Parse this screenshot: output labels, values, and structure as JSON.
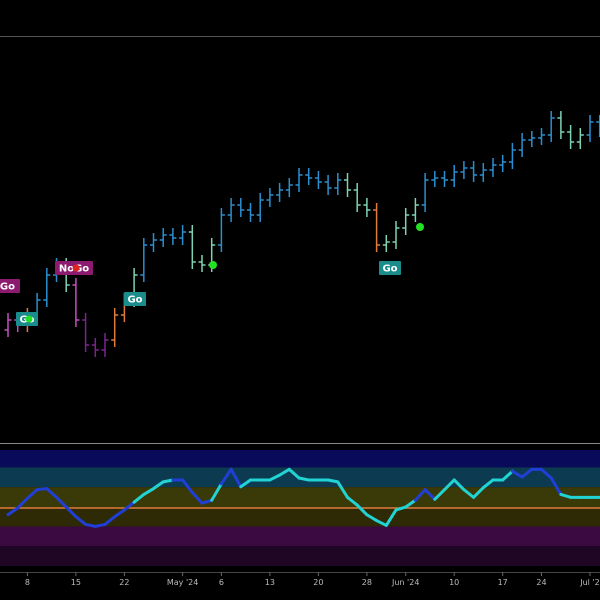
{
  "chart_data": [
    {
      "type": "ohlc",
      "categories": [
        null,
        null,
        "8",
        null,
        null,
        null,
        null,
        "15",
        null,
        null,
        null,
        null,
        "22",
        null,
        null,
        null,
        null,
        null,
        "May '24",
        null,
        null,
        null,
        "6",
        null,
        null,
        null,
        null,
        "13",
        null,
        null,
        null,
        null,
        "20",
        null,
        null,
        null,
        null,
        "28",
        null,
        null,
        null,
        "Jun '24",
        null,
        null,
        null,
        null,
        "10",
        null,
        null,
        null,
        null,
        "17",
        null,
        null,
        null,
        "24",
        null,
        null,
        null,
        null,
        "Jul '2",
        null
      ],
      "open": [
        110,
        120,
        115,
        125,
        140,
        165,
        175,
        155,
        120,
        95,
        90,
        100,
        125,
        140,
        165,
        195,
        200,
        205,
        202,
        208,
        178,
        175,
        195,
        225,
        235,
        230,
        225,
        240,
        245,
        250,
        255,
        265,
        262,
        258,
        252,
        260,
        250,
        235,
        230,
        195,
        198,
        212,
        225,
        235,
        260,
        262,
        260,
        268,
        272,
        265,
        270,
        275,
        278,
        290,
        300,
        302,
        305,
        322,
        308,
        298,
        305,
        318
      ],
      "high": [
        127,
        127,
        132,
        147,
        172,
        182,
        182,
        162,
        127,
        102,
        107,
        132,
        147,
        172,
        202,
        207,
        212,
        212,
        215,
        215,
        185,
        202,
        232,
        242,
        242,
        237,
        247,
        252,
        257,
        262,
        272,
        272,
        269,
        265,
        267,
        267,
        257,
        242,
        237,
        205,
        219,
        232,
        242,
        267,
        269,
        269,
        275,
        279,
        279,
        277,
        282,
        285,
        297,
        307,
        309,
        312,
        329,
        329,
        315,
        312,
        325,
        325
      ],
      "low": [
        103,
        108,
        108,
        118,
        133,
        158,
        148,
        113,
        88,
        83,
        83,
        93,
        118,
        133,
        158,
        188,
        193,
        195,
        195,
        171,
        168,
        168,
        188,
        218,
        223,
        218,
        218,
        233,
        238,
        243,
        248,
        255,
        251,
        245,
        245,
        243,
        228,
        223,
        188,
        188,
        191,
        205,
        218,
        228,
        253,
        253,
        253,
        261,
        258,
        258,
        263,
        268,
        271,
        283,
        293,
        295,
        298,
        301,
        291,
        291,
        298,
        303
      ],
      "close": [
        120,
        115,
        125,
        140,
        165,
        175,
        155,
        120,
        95,
        90,
        100,
        125,
        140,
        165,
        195,
        200,
        205,
        202,
        208,
        178,
        175,
        195,
        225,
        235,
        230,
        225,
        240,
        245,
        250,
        255,
        265,
        262,
        258,
        252,
        260,
        250,
        235,
        230,
        195,
        198,
        212,
        225,
        235,
        260,
        262,
        260,
        268,
        272,
        265,
        270,
        275,
        278,
        290,
        300,
        302,
        305,
        322,
        308,
        298,
        305,
        318,
        310
      ],
      "bar_colors": [
        "#c64fc0",
        "#c64fc0",
        "#e07b39",
        "#2a8fd0",
        "#2a8fd0",
        "#2a8fd0",
        "#7fd3b2",
        "#c64fc0",
        "#7b2490",
        "#7b2490",
        "#7b2490",
        "#e07b39",
        "#e07b39",
        "#7fd3b2",
        "#2a8fd0",
        "#2a8fd0",
        "#2a8fd0",
        "#2a8fd0",
        "#2a8fd0",
        "#7fd3b2",
        "#7fd3b2",
        "#7fd3b2",
        "#2a8fd0",
        "#2a8fd0",
        "#2a8fd0",
        "#2a8fd0",
        "#2a8fd0",
        "#2a8fd0",
        "#2a8fd0",
        "#2a8fd0",
        "#2a8fd0",
        "#2a8fd0",
        "#2a8fd0",
        "#2a8fd0",
        "#2a8fd0",
        "#7fd3b2",
        "#7fd3b2",
        "#7fd3b2",
        "#e07b39",
        "#7fd3b2",
        "#7fd3b2",
        "#7fd3b2",
        "#7fd3b2",
        "#2a8fd0",
        "#2a8fd0",
        "#2a8fd0",
        "#2a8fd0",
        "#2a8fd0",
        "#2a8fd0",
        "#2a8fd0",
        "#2a8fd0",
        "#2a8fd0",
        "#2a8fd0",
        "#2a8fd0",
        "#2a8fd0",
        "#2a8fd0",
        "#2a8fd0",
        "#7fd3b2",
        "#7fd3b2",
        "#7fd3b2",
        "#2a8fd0",
        "#2a8fd0"
      ],
      "ylim": [
        -3,
        404
      ],
      "annotations": [
        {
          "text": "o",
          "color": "#1b8c8c"
        },
        {
          "text": "oGo",
          "color": "#8c1a6e"
        },
        {
          "text": "Go",
          "color": "#1b8c8c"
        },
        {
          "text": "NoGo",
          "color": "#8c1a6e"
        },
        {
          "text": "Go",
          "color": "#1b8c8c"
        },
        {
          "text": "Go",
          "color": "#1b8c8c"
        }
      ]
    },
    {
      "type": "line",
      "values": [
        -0.7,
        0,
        1,
        1.9,
        2,
        1.1,
        0.1,
        -0.9,
        -1.7,
        -1.9,
        -1.7,
        -0.9,
        -0.2,
        0.6,
        1.4,
        2,
        2.7,
        2.9,
        2.9,
        1.6,
        0.5,
        0.8,
        2.5,
        4,
        2.2,
        2.9,
        2.9,
        2.9,
        3.4,
        4,
        3.1,
        2.9,
        2.9,
        2.9,
        2.7,
        1.1,
        0.3,
        -0.7,
        -1.3,
        -1.8,
        -0.2,
        0.1,
        0.8,
        1.9,
        0.9,
        1.9,
        2.9,
        1.9,
        1.1,
        2.1,
        2.9,
        2.9,
        3.8,
        3.2,
        4,
        4,
        3.1,
        1.4,
        1.1,
        1.1,
        1.1,
        1.1
      ],
      "line_colors": [
        "#22d3d3",
        "#1f3fd6",
        "#1f3fd6",
        "#1f3fd6",
        "#1f3fd6",
        "#1f3fd6",
        "#1f3fd6",
        "#1f3fd6",
        "#1f3fd6",
        "#1f3fd6",
        "#1f3fd6",
        "#1f3fd6",
        "#1f3fd6",
        "#1f3fd6",
        "#22d3d3",
        "#22d3d3",
        "#22d3d3",
        "#22d3d3",
        "#1f3fd6",
        "#1f3fd6",
        "#1f3fd6",
        "#1f3fd6",
        "#22d3d3",
        "#1f3fd6",
        "#1f3fd6",
        "#22d3d3",
        "#22d3d3",
        "#22d3d3",
        "#22d3d3",
        "#22d3d3",
        "#22d3d3",
        "#22d3d3",
        "#22d3d3",
        "#22d3d3",
        "#22d3d3",
        "#22d3d3",
        "#22d3d3",
        "#22d3d3",
        "#22d3d3",
        "#22d3d3",
        "#22d3d3",
        "#22d3d3",
        "#22d3d3",
        "#1f3fd6",
        "#1f3fd6",
        "#22d3d3",
        "#22d3d3",
        "#22d3d3",
        "#22d3d3",
        "#22d3d3",
        "#22d3d3",
        "#22d3d3",
        "#22d3d3",
        "#1f3fd6",
        "#1f3fd6",
        "#1f3fd6",
        "#1f3fd6",
        "#1f3fd6",
        "#22d3d3",
        "#22d3d3",
        "#22d3d3",
        "#22d3d3"
      ],
      "ylim": [
        -6,
        6
      ],
      "zero_color": "#e07b39"
    }
  ]
}
